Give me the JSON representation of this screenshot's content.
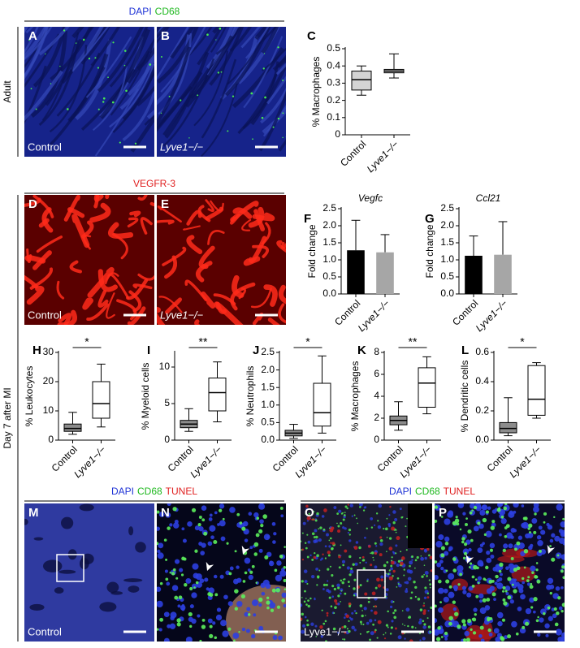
{
  "figure": {
    "headers": [
      [
        "DAPI",
        "CD68"
      ],
      [
        "VEGFR-3"
      ],
      [
        "DAPI",
        "CD68",
        "TUNEL"
      ],
      [
        "DAPI",
        "CD68",
        "TUNEL"
      ]
    ],
    "stain_colors": {
      "DAPI": "#1f33d6",
      "CD68": "#1fb81f",
      "VEGFR-3": "#e02020",
      "TUNEL": "#e02020"
    },
    "row_labels": [
      "Adult",
      "Day 7 after MI"
    ],
    "images": [
      {
        "panel": "A",
        "label": "Control"
      },
      {
        "panel": "B",
        "label": "Lyve1−/−"
      },
      {
        "panel": "D",
        "label": "Control"
      },
      {
        "panel": "E",
        "label": "Lyve1−/−"
      },
      {
        "panel": "M",
        "label": "Control"
      },
      {
        "panel": "N"
      },
      {
        "panel": "O",
        "label": "Lyve1−/−"
      },
      {
        "panel": "P"
      }
    ]
  },
  "chart_data": [
    {
      "type": "box",
      "panel": "C",
      "ylabel": "% Macrophages",
      "categories": [
        "Control",
        "Lyve1−/−"
      ],
      "boxes": [
        {
          "min": 0.23,
          "q1": 0.26,
          "median": 0.32,
          "q3": 0.37,
          "max": 0.4
        },
        {
          "min": 0.33,
          "q1": 0.36,
          "median": 0.37,
          "q3": 0.38,
          "max": 0.47
        }
      ],
      "colors": [
        "#d4d4d4",
        "#bdbdbd"
      ],
      "ylim": [
        0,
        0.5
      ],
      "yticks": [
        0,
        0.1,
        0.2,
        0.3,
        0.4,
        0.5
      ]
    },
    {
      "type": "bar",
      "panel": "F",
      "title": "Vegfc",
      "ylabel": "Fold change",
      "categories": [
        "Control",
        "Lyve1−/−"
      ],
      "values": [
        1.28,
        1.22
      ],
      "errors": [
        0.88,
        0.52
      ],
      "colors": [
        "#000000",
        "#a6a6a6"
      ],
      "ylim": [
        0,
        2.5
      ],
      "yticks": [
        {
          "value": 0,
          "label": "0.0"
        },
        0.5,
        {
          "value": 1,
          "label": "1.0"
        },
        1.5,
        {
          "value": 2,
          "label": "2.0"
        },
        2.5
      ]
    },
    {
      "type": "bar",
      "panel": "G",
      "title": "Ccl21",
      "ylabel": "Fold change",
      "categories": [
        "Control",
        "Lyve1−/−"
      ],
      "values": [
        1.12,
        1.15
      ],
      "errors": [
        0.58,
        0.97
      ],
      "colors": [
        "#000000",
        "#a6a6a6"
      ],
      "ylim": [
        0,
        2.5
      ],
      "yticks": [
        {
          "value": 0,
          "label": "0.0"
        },
        0.5,
        {
          "value": 1,
          "label": "1.0"
        },
        1.5,
        {
          "value": 2,
          "label": "2.0"
        },
        2.5
      ]
    },
    {
      "type": "box",
      "panel": "H",
      "ylabel": "% Leukocytes",
      "categories": [
        "Control",
        "Lyve1−/−"
      ],
      "significance": "*",
      "boxes": [
        {
          "min": 2,
          "q1": 3,
          "median": 4,
          "q3": 5.5,
          "max": 9.5
        },
        {
          "min": 4.5,
          "q1": 7.5,
          "median": 12.5,
          "q3": 20,
          "max": 26
        }
      ],
      "colors": [
        "#8c8c8c",
        "#ffffff"
      ],
      "ylim": [
        0,
        30
      ],
      "yticks": [
        0,
        10,
        20,
        30
      ]
    },
    {
      "type": "box",
      "panel": "I",
      "ylabel": "% Myeloid cells",
      "categories": [
        "Control",
        "Lyve1−/−"
      ],
      "significance": "**",
      "boxes": [
        {
          "min": 1.2,
          "q1": 1.7,
          "median": 2.2,
          "q3": 2.7,
          "max": 4.3
        },
        {
          "min": 2.5,
          "q1": 4,
          "median": 6.5,
          "q3": 8.5,
          "max": 10.7
        }
      ],
      "colors": [
        "#8c8c8c",
        "#ffffff"
      ],
      "ylim": [
        0,
        12
      ],
      "yticks": [
        0,
        5,
        10
      ]
    },
    {
      "type": "box",
      "panel": "J",
      "ylabel": "% Neutrophils",
      "categories": [
        "Control",
        "Lyve1−/−"
      ],
      "significance": "*",
      "boxes": [
        {
          "min": 0.05,
          "q1": 0.12,
          "median": 0.2,
          "q3": 0.28,
          "max": 0.45
        },
        {
          "min": 0.2,
          "q1": 0.4,
          "median": 0.78,
          "q3": 1.62,
          "max": 2.4
        }
      ],
      "colors": [
        "#8c8c8c",
        "#ffffff"
      ],
      "ylim": [
        0,
        2.5
      ],
      "yticks": [
        {
          "value": 0,
          "label": "0.0"
        },
        0.5,
        {
          "value": 1,
          "label": "1.0"
        },
        1.5,
        {
          "value": 2,
          "label": "2.0"
        },
        2.5
      ]
    },
    {
      "type": "box",
      "panel": "K",
      "ylabel": "% Macrophages",
      "categories": [
        "Control",
        "Lyve1−/−"
      ],
      "significance": "**",
      "boxes": [
        {
          "min": 0.9,
          "q1": 1.4,
          "median": 1.8,
          "q3": 2.2,
          "max": 3.5
        },
        {
          "min": 2.4,
          "q1": 3,
          "median": 5.2,
          "q3": 6.6,
          "max": 7.6
        }
      ],
      "colors": [
        "#8c8c8c",
        "#ffffff"
      ],
      "ylim": [
        0,
        8
      ],
      "yticks": [
        0,
        2,
        4,
        6,
        8
      ]
    },
    {
      "type": "box",
      "panel": "L",
      "ylabel": "% Dendritic cells",
      "categories": [
        "Control",
        "Lyve1−/−"
      ],
      "significance": "*",
      "boxes": [
        {
          "min": 0.03,
          "q1": 0.05,
          "median": 0.08,
          "q3": 0.12,
          "max": 0.29
        },
        {
          "min": 0.15,
          "q1": 0.17,
          "median": 0.28,
          "q3": 0.51,
          "max": 0.53
        }
      ],
      "colors": [
        "#8c8c8c",
        "#ffffff"
      ],
      "ylim": [
        0,
        0.6
      ],
      "yticks": [
        {
          "value": 0,
          "label": "0.0"
        },
        0.2,
        0.4,
        0.6
      ]
    }
  ]
}
